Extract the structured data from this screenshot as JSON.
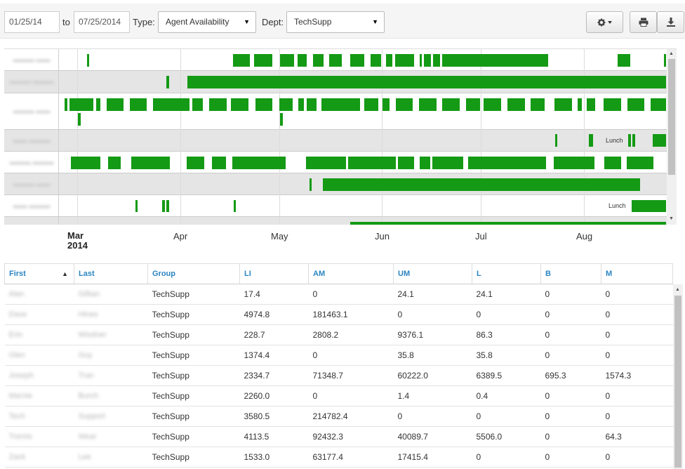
{
  "toolbar": {
    "from_date": "01/25/14",
    "to_label": "to",
    "to_date": "07/25/2014",
    "type_label": "Type:",
    "type_value": "Agent Availability",
    "dept_label": "Dept:",
    "dept_value": "TechSupp",
    "settings_icon": "gear-icon",
    "print_icon": "print-icon",
    "download_icon": "download-icon"
  },
  "timeline": {
    "bar_color": "#149a14",
    "lunch_label": "Lunch",
    "months": [
      "Mar",
      "Apr",
      "May",
      "Jun",
      "Jul",
      "Aug"
    ],
    "year": "2014"
  },
  "table": {
    "columns": [
      "First",
      "Last",
      "Group",
      "LI",
      "AM",
      "UM",
      "L",
      "B",
      "M"
    ],
    "rows": [
      [
        "Alan",
        "Gillian",
        "TechSupp",
        "17.4",
        "0",
        "24.1",
        "24.1",
        "0",
        "0"
      ],
      [
        "Dave",
        "Hines",
        "TechSupp",
        "4974.8",
        "181463.1",
        "0",
        "0",
        "0",
        "0"
      ],
      [
        "Erin",
        "Wisdner",
        "TechSupp",
        "228.7",
        "2808.2",
        "9376.1",
        "86.3",
        "0",
        "0"
      ],
      [
        "Glen",
        "Guy",
        "TechSupp",
        "1374.4",
        "0",
        "35.8",
        "35.8",
        "0",
        "0"
      ],
      [
        "Joseph",
        "Tran",
        "TechSupp",
        "2334.7",
        "71348.7",
        "60222.0",
        "6389.5",
        "695.3",
        "1574.3"
      ],
      [
        "Marnie",
        "Burch",
        "TechSupp",
        "2260.0",
        "0",
        "1.4",
        "0.4",
        "0",
        "0"
      ],
      [
        "Tech",
        "Support",
        "TechSupp",
        "3580.5",
        "214782.4",
        "0",
        "0",
        "0",
        "0"
      ],
      [
        "Tremis",
        "Wear",
        "TechSupp",
        "4113.5",
        "92432.3",
        "40089.7",
        "5506.0",
        "0",
        "64.3"
      ],
      [
        "Zack",
        "Lee",
        "TechSupp",
        "1533.0",
        "63177.4",
        "17415.4",
        "0",
        "0",
        "0"
      ]
    ]
  }
}
